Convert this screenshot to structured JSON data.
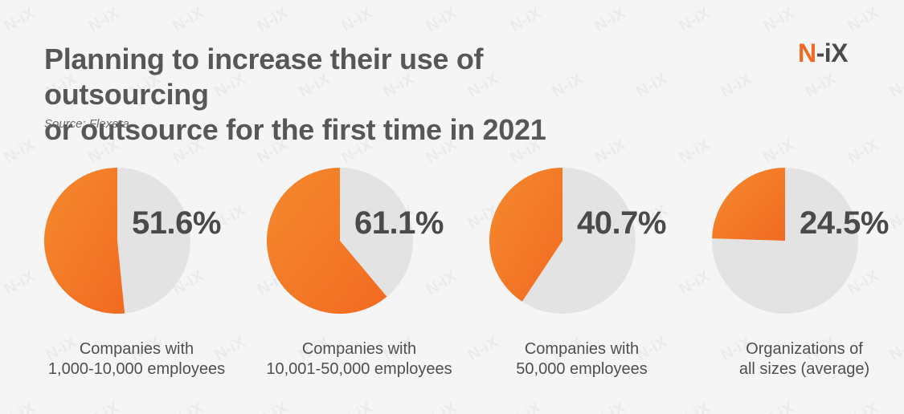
{
  "header": {
    "title_line1": "Planning to increase their use of outsourcing",
    "title_line2": "or outsource for the first time in 2021",
    "source": "Source: Flexera"
  },
  "logo": {
    "n": "N",
    "dash": "-",
    "ix": "iX",
    "watermark": "N-iX"
  },
  "colors": {
    "accent": "#f26a21",
    "accent_light": "#f58a2e",
    "remainder": "#e3e3e3",
    "text_dark": "#4a4a4a",
    "background": "#f5f5f5"
  },
  "chart_data": {
    "type": "pie",
    "title": "Planning to increase their use of outsourcing or outsource for the first time in 2021",
    "charts": [
      {
        "value_label": "51.6%",
        "value": 51.6,
        "remainder": 48.4,
        "caption_lines": [
          "Companies with",
          "1,000-10,000 employees"
        ]
      },
      {
        "value_label": "61.1%",
        "value": 61.1,
        "remainder": 38.9,
        "caption_lines": [
          "Companies with",
          "10,001-50,000 employees"
        ]
      },
      {
        "value_label": "40.7%",
        "value": 40.7,
        "remainder": 59.3,
        "caption_lines": [
          "Companies with",
          "50,000 employees"
        ]
      },
      {
        "value_label": "24.5%",
        "value": 24.5,
        "remainder": 75.5,
        "caption_lines": [
          "Organizations of",
          "all sizes (average)"
        ]
      }
    ]
  }
}
